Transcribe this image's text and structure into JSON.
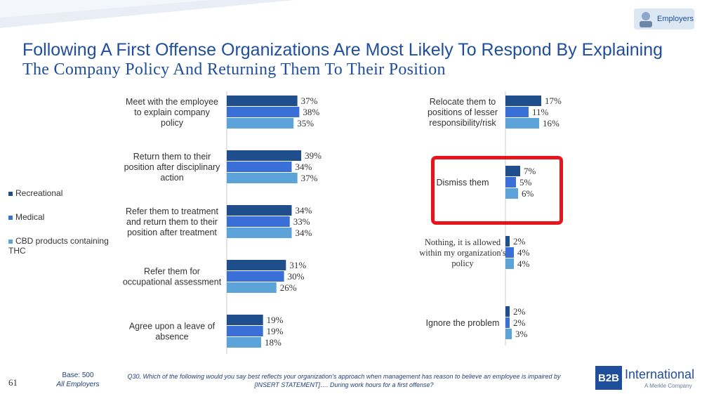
{
  "page": {
    "title_line1": "Following A First Offense Organizations Are Most Likely To Respond By Explaining",
    "title_line2": "The Company Policy And Returning Them To Their Position",
    "employers_button": "Employers",
    "page_number": "61",
    "base_line1": "Base: 500",
    "base_line2": "All Employers",
    "footnote_line1": "Q30. Which of the following would you say best reflects your organization's approach when management has reason to believe an employee is impaired by",
    "footnote_line2": "[INSERT STATEMENT]…. During work hours for a first offense?",
    "logo_mark": "B2B",
    "logo_text": "International",
    "logo_sub": "A Merkle Company"
  },
  "legend": [
    "Recreational",
    "Medical",
    "CBD products containing THC"
  ],
  "colors": {
    "Recreational": "#1f4e8c",
    "Medical": "#3a6fd8",
    "CBD products containing THC": "#5ba3d9",
    "highlight": "#e8141c",
    "title": "#1f4e9c"
  },
  "chart_data": [
    {
      "type": "bar",
      "orientation": "horizontal",
      "categories": [
        "Meet with the employee to explain company policy",
        "Return them to their position after disciplinary action",
        "Refer them to treatment and return them to their position after treatment",
        "Refer them for occupational assessment",
        "Agree upon a leave of absence"
      ],
      "category_lines": [
        [
          "Meet with the employee",
          "to explain company",
          "policy"
        ],
        [
          "Return them to their",
          "position after disciplinary",
          "action"
        ],
        [
          "Refer them to treatment",
          "and return them to their",
          "position after treatment"
        ],
        [
          "Refer them for",
          "occupational assessment"
        ],
        [
          "Agree upon a leave of",
          "absence"
        ]
      ],
      "series": [
        {
          "name": "Recreational",
          "values": [
            37,
            39,
            34,
            31,
            19
          ]
        },
        {
          "name": "Medical",
          "values": [
            38,
            34,
            33,
            30,
            19
          ]
        },
        {
          "name": "CBD products containing THC",
          "values": [
            35,
            37,
            34,
            26,
            18
          ]
        }
      ],
      "value_suffix": "%"
    },
    {
      "type": "bar",
      "orientation": "horizontal",
      "categories": [
        "Relocate them to positions of lesser responsibility/risk",
        "Dismiss them",
        "Nothing, it is allowed within my organization's policy",
        "Ignore the problem"
      ],
      "category_lines": [
        [
          "Relocate them to",
          "positions of lesser",
          "responsibility/risk"
        ],
        [
          "Dismiss them"
        ],
        [
          "Nothing, it is allowed",
          "within my organization's",
          "policy"
        ],
        [
          "Ignore the problem"
        ]
      ],
      "series": [
        {
          "name": "Recreational",
          "values": [
            17,
            7,
            2,
            2
          ]
        },
        {
          "name": "Medical",
          "values": [
            11,
            5,
            4,
            2
          ]
        },
        {
          "name": "CBD products containing THC",
          "values": [
            16,
            6,
            4,
            3
          ]
        }
      ],
      "value_suffix": "%",
      "highlighted_category": "Dismiss them"
    }
  ]
}
